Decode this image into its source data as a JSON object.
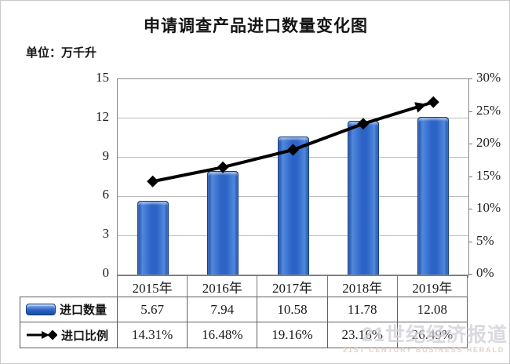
{
  "title": "申请调查产品进口数量变化图",
  "unit_label": "单位：万千升",
  "watermark": {
    "line1": "21世纪经济报道",
    "line2": "21ST CENTURY BUSINESS HERALD"
  },
  "colors": {
    "bar_fill": "#2c63c6",
    "bar_edge": "#143e85",
    "line": "#000000",
    "grid": "#bcbcbc",
    "plot_border": "#8a8a8a"
  },
  "chart_data": {
    "type": "bar",
    "subtype": "combo bar+line, dual axis",
    "title": "申请调查产品进口数量变化图",
    "unit": "万千升",
    "categories": [
      "2015年",
      "2016年",
      "2017年",
      "2018年",
      "2019年"
    ],
    "series": [
      {
        "name": "进口数量",
        "type": "bar",
        "axis": "left",
        "values": [
          5.67,
          7.94,
          10.58,
          11.78,
          12.08
        ],
        "color": "#2c63c6"
      },
      {
        "name": "进口比例",
        "type": "line",
        "axis": "right",
        "values_pct": [
          14.31,
          16.48,
          19.16,
          23.16,
          26.49
        ],
        "color": "#000000",
        "marker": "diamond",
        "arrow_end": true
      }
    ],
    "left_axis": {
      "min": 0,
      "max": 15,
      "step": 3,
      "ticks": [
        "15",
        "12",
        "9",
        "6",
        "3",
        "0"
      ]
    },
    "right_axis": {
      "min": 0,
      "max": 30,
      "step": 5,
      "ticks": [
        "30%",
        "25%",
        "20%",
        "15%",
        "10%",
        "5%",
        "0%"
      ]
    },
    "grid": true,
    "legend_position": "table-left"
  },
  "table": {
    "rows": [
      {
        "legend": "进口数量",
        "values": [
          "5.67",
          "7.94",
          "10.58",
          "11.78",
          "12.08"
        ]
      },
      {
        "legend": "进口比例",
        "values": [
          "14.31%",
          "16.48%",
          "19.16%",
          "23.16%",
          "26.49%"
        ]
      }
    ]
  }
}
